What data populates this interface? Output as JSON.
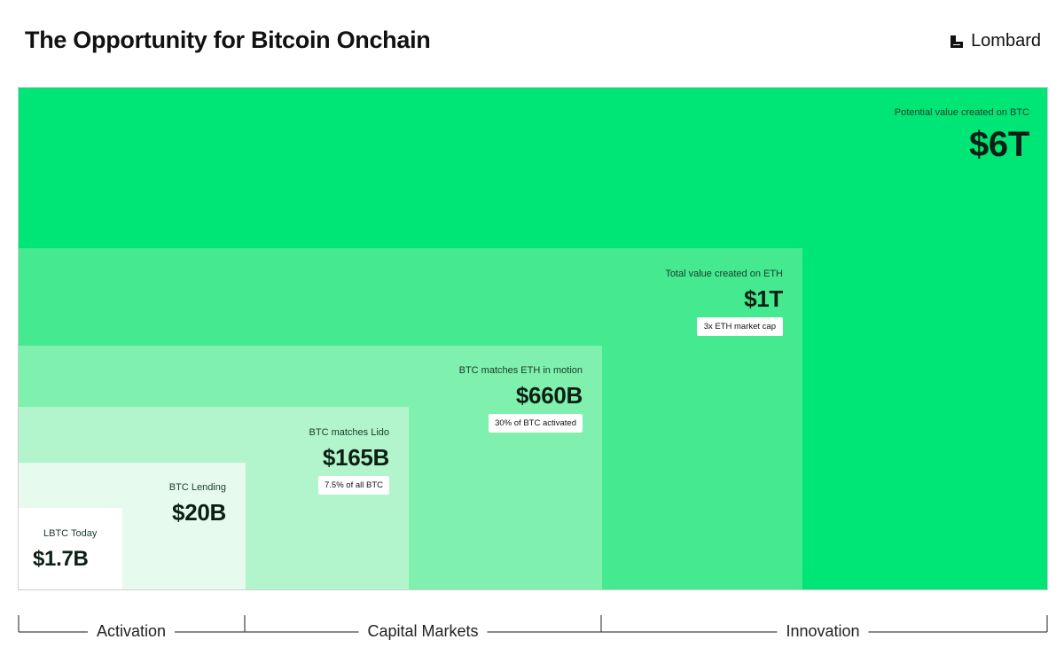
{
  "header": {
    "title": "The Opportunity for Bitcoin Onchain",
    "brand": "Lombard"
  },
  "chart_data": {
    "type": "treemap-nested",
    "title": "The Opportunity for Bitcoin Onchain",
    "series": [
      {
        "caption": "LBTC Today",
        "value": "$1.7B",
        "badge": "",
        "color": "#ffffff"
      },
      {
        "caption": "BTC Lending",
        "value": "$20B",
        "badge": "",
        "color": "#e6fbee"
      },
      {
        "caption": "BTC matches Lido",
        "value": "$165B",
        "badge": "7.5% of all BTC",
        "color": "#b2f5cc"
      },
      {
        "caption": "BTC matches ETH in motion",
        "value": "$660B",
        "badge": "30% of BTC activated",
        "color": "#7ff0ad"
      },
      {
        "caption": "Total value created on ETH",
        "value": "$1T",
        "badge": "3x ETH market cap",
        "color": "#45e990"
      },
      {
        "caption": "Potential value created on BTC",
        "value": "$6T",
        "badge": "",
        "color": "#00e676"
      }
    ],
    "phases": [
      "Activation",
      "Capital Markets",
      "Innovation"
    ]
  }
}
